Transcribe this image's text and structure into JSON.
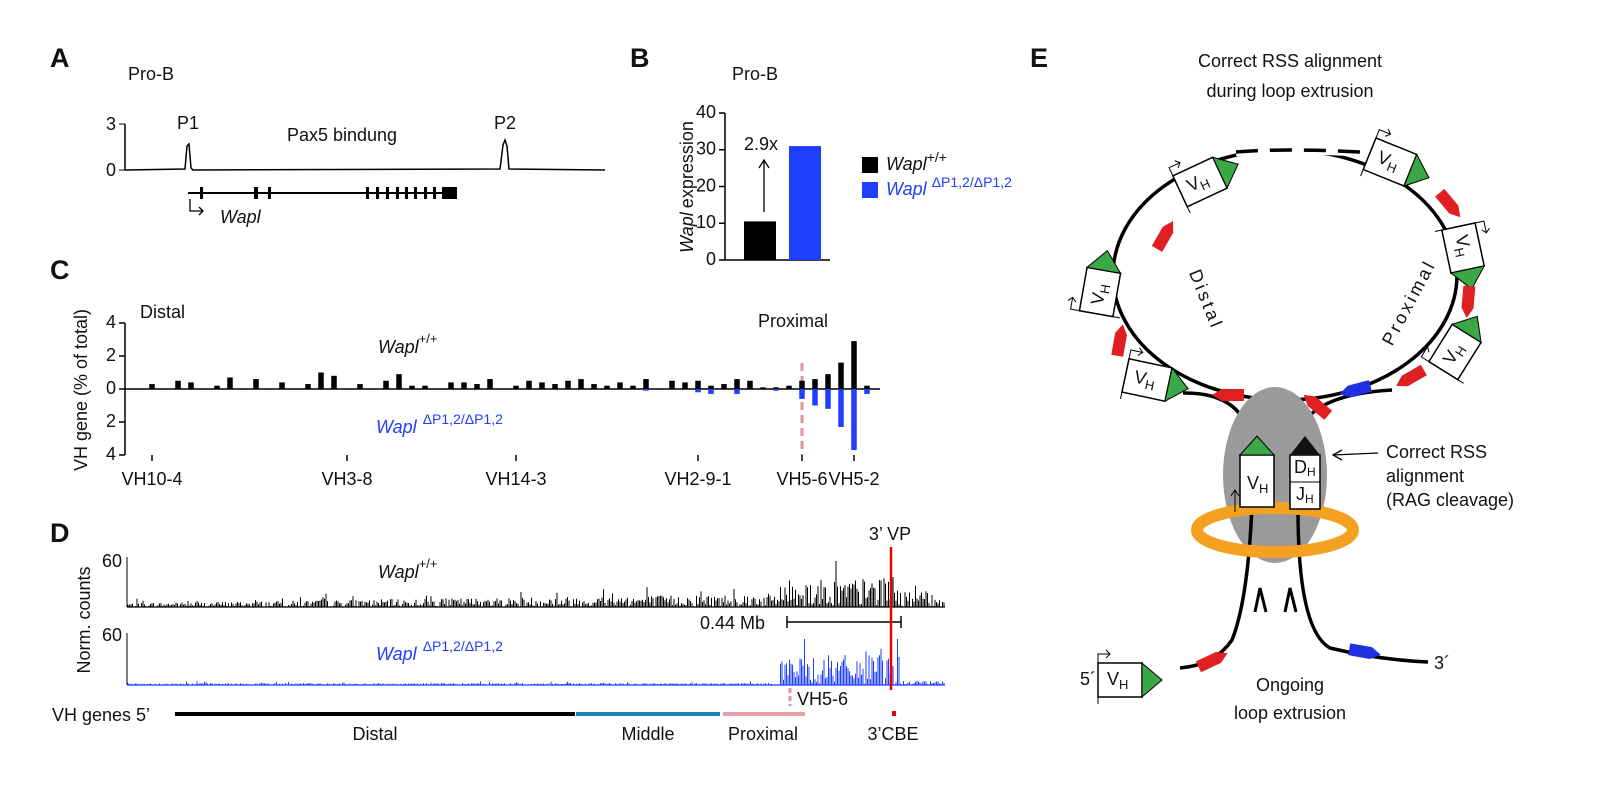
{
  "panel_labels": [
    "A",
    "B",
    "C",
    "D",
    "E"
  ],
  "panel_a": {
    "title": "Pro-B",
    "yticks": [
      0,
      3
    ],
    "peaks": [
      "P1",
      "P2"
    ],
    "annotation": "Pax5 bindung",
    "gene": "Wapl"
  },
  "chart_data": [
    {
      "type": "bar",
      "title": "Pro-B",
      "y_label": {
        "gene": "Wapl",
        "text": "expression"
      },
      "series": [
        {
          "name": "Wapl",
          "superscript": "+/+",
          "color": "#000000",
          "values": [
            10.5
          ]
        },
        {
          "name": "Wapl",
          "superscript": "ΔP1,2/ΔP1,2",
          "color": "#1f3fff",
          "values": [
            31
          ]
        }
      ],
      "ylim": [
        0,
        40
      ],
      "yticks": [
        0,
        10,
        20,
        30,
        40
      ],
      "annotation": "2.9x"
    },
    {
      "type": "bar",
      "y_label": "VH gene (% of total)",
      "categories": [
        "VH10-4",
        null,
        null,
        null,
        null,
        null,
        null,
        null,
        null,
        null,
        null,
        null,
        null,
        null,
        null,
        "VH3-8",
        null,
        null,
        null,
        null,
        null,
        null,
        null,
        null,
        null,
        null,
        null,
        null,
        "VH14-3",
        null,
        null,
        null,
        null,
        null,
        null,
        null,
        null,
        null,
        null,
        null,
        null,
        null,
        "VH2-9-1",
        null,
        null,
        null,
        null,
        null,
        null,
        null,
        "VH5-6",
        null,
        null,
        null,
        "VH5-2",
        null
      ],
      "highlight_category": "VH5-6",
      "highlight_color": "#e8909a",
      "series": [
        {
          "name": "Wapl",
          "superscript": "+/+",
          "color": "#000000",
          "values": [
            0.3,
            0,
            0.5,
            0.4,
            0,
            0.2,
            0.7,
            0,
            0.6,
            0,
            0.4,
            0,
            0.3,
            1.0,
            0.8,
            0,
            0.3,
            0,
            0.5,
            0.9,
            0.2,
            0.2,
            0,
            0.4,
            0.4,
            0.3,
            0.6,
            0,
            0.2,
            0.5,
            0.4,
            0.3,
            0.5,
            0.6,
            0.3,
            0.2,
            0.4,
            0.2,
            0.6,
            0,
            0.5,
            0.4,
            0.5,
            0.2,
            0.3,
            0.6,
            0.5,
            0.1,
            0.1,
            0.2,
            0.5,
            0.6,
            0.9,
            1.6,
            2.9,
            0.2
          ]
        },
        {
          "name": "Wapl",
          "superscript": "ΔP1,2/ΔP1,2",
          "color": "#1f3fff",
          "values": [
            0,
            0,
            0,
            0,
            0,
            0,
            0,
            0,
            0,
            0,
            0,
            0,
            0,
            0,
            0,
            0,
            0,
            0,
            0,
            0,
            0,
            0,
            0,
            0,
            0,
            0,
            0,
            0,
            0,
            0,
            0,
            0,
            0,
            0,
            0,
            0,
            0,
            0,
            -0.1,
            0,
            0,
            0,
            -0.2,
            -0.3,
            0,
            -0.3,
            0,
            0,
            -0.1,
            0,
            -0.6,
            -1.0,
            -1.2,
            -2.3,
            -3.7,
            -0.3
          ]
        }
      ],
      "ylim": [
        -4,
        4
      ],
      "yticks": [
        {
          "value": -4,
          "label": "4"
        },
        {
          "value": -2,
          "label": "2"
        },
        0,
        2,
        4
      ],
      "annotations": [
        "Distal",
        "Proximal"
      ]
    }
  ],
  "panel_d": {
    "marker": "3’ VP",
    "y_label": "Norm. counts",
    "tracks": [
      {
        "name": "Wapl",
        "superscript": "+/+",
        "color": "#000000",
        "ymax": 60
      },
      {
        "name": "Wapl",
        "superscript": "ΔP1,2/ΔP1,2",
        "color": "#1f3fff",
        "ymax": 60
      }
    ],
    "scale_bar": "0.44 Mb",
    "highlight": "VH5-6",
    "genes_label": "VH genes 5’",
    "regions": [
      {
        "name": "Distal",
        "color": "#000000"
      },
      {
        "name": "Middle",
        "color": "#1a86b8"
      },
      {
        "name": "Proximal",
        "color": "#e8a0a8"
      }
    ],
    "cbe": "3’CBE"
  },
  "panel_e": {
    "title": [
      "Correct RSS alignment",
      "during loop extrusion"
    ],
    "arms": [
      "Distal",
      "Proximal"
    ],
    "vh": {
      "main": "V",
      "sub": "H"
    },
    "dh": {
      "main": "D",
      "sub": "H"
    },
    "jh": {
      "main": "J",
      "sub": "H"
    },
    "callout": [
      "Correct RSS",
      "alignment",
      "(RAG cleavage)"
    ],
    "ends": [
      "5´",
      "3´"
    ],
    "caption": [
      "Ongoing",
      "loop extrusion"
    ]
  }
}
